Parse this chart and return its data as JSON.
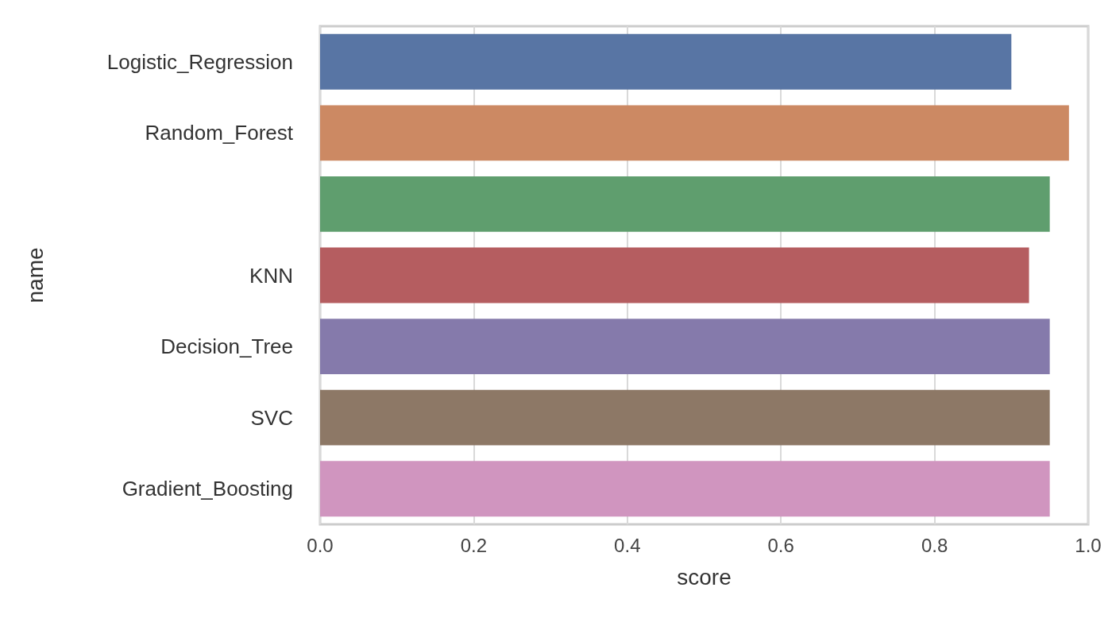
{
  "chart_data": {
    "type": "bar",
    "orientation": "horizontal",
    "categories": [
      "Logistic_Regression",
      "Random_Forest",
      null,
      "KNN",
      "Decision_Tree",
      "SVC",
      "Gradient_Boosting"
    ],
    "values": [
      0.9,
      0.975,
      0.95,
      0.923,
      0.95,
      0.95,
      0.95
    ],
    "colors": [
      "#5875a4",
      "#cc8963",
      "#5f9e6e",
      "#b55d60",
      "#857aab",
      "#8d7866",
      "#d095bf"
    ],
    "xlim": [
      0,
      1.0
    ],
    "xticks": [
      {
        "value": 0,
        "label": "0.0"
      },
      0.2,
      0.4,
      0.6,
      0.8,
      {
        "value": 1,
        "label": "1.0"
      }
    ],
    "xlabel": "score",
    "ylabel": "name",
    "grid": "x"
  }
}
